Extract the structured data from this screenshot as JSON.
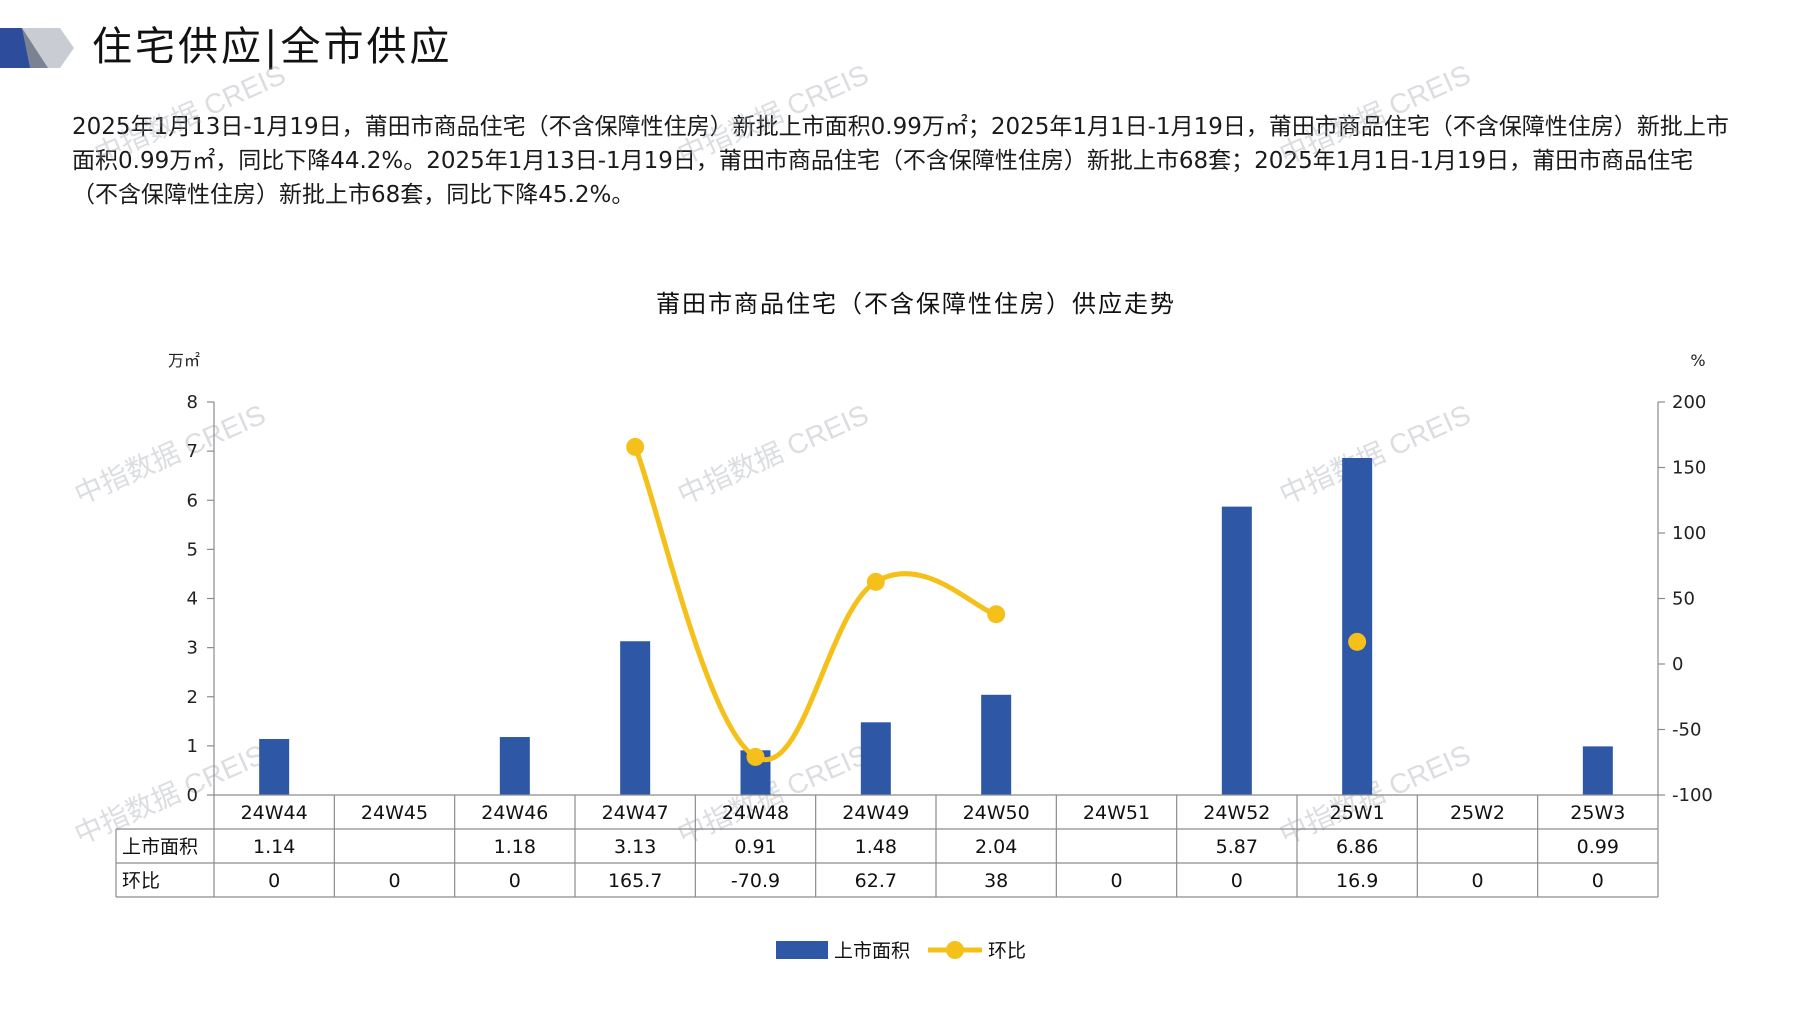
{
  "header": {
    "title": "住宅供应|全市供应"
  },
  "summary": "2025年1月13日-1月19日，莆田市商品住宅（不含保障性住房）新批上市面积0.99万㎡；2025年1月1日-1月19日，莆田市商品住宅（不含保障性住房）新批上市面积0.99万㎡，同比下降44.2%。2025年1月13日-1月19日，莆田市商品住宅（不含保障性住房）新批上市68套；2025年1月1日-1月19日，莆田市商品住宅（不含保障性住房）新批上市68套，同比下降45.2%。",
  "watermark": "中指数据 CREIS",
  "colors": {
    "bar": "#2E58A6",
    "line": "#F5C01A",
    "grid": "#8C8C8C",
    "logo_dark": "#2E4C9C",
    "logo_light": "#C9CCD3"
  },
  "chart_data": {
    "type": "bar+line",
    "title": "莆田市商品住宅（不含保障性住房）供应走势",
    "left_unit": "万㎡",
    "right_unit": "%",
    "categories": [
      "24W44",
      "24W45",
      "24W46",
      "24W47",
      "24W48",
      "24W49",
      "24W50",
      "24W51",
      "24W52",
      "25W1",
      "25W2",
      "25W3"
    ],
    "y_left": {
      "min": 0,
      "max": 8,
      "ticks": [
        "0",
        "1",
        "2",
        "3",
        "4",
        "5",
        "6",
        "7",
        "8"
      ]
    },
    "y_right": {
      "min": -100,
      "max": 200,
      "ticks": [
        "-100",
        "-50",
        "0",
        "50",
        "100",
        "150",
        "200"
      ]
    },
    "series": [
      {
        "name": "上市面积",
        "type": "bar",
        "values": [
          1.14,
          null,
          1.18,
          3.13,
          0.91,
          1.48,
          2.04,
          null,
          5.87,
          6.86,
          null,
          0.99
        ],
        "labels": [
          "1.14",
          "",
          "1.18",
          "3.13",
          "0.91",
          "1.48",
          "2.04",
          "",
          "5.87",
          "6.86",
          "",
          "0.99"
        ]
      },
      {
        "name": "环比",
        "type": "line",
        "values": [
          0,
          0,
          0,
          165.7,
          -70.9,
          62.7,
          38,
          0,
          0,
          16.9,
          0,
          0
        ],
        "labels": [
          "0",
          "0",
          "0",
          "165.7",
          "-70.9",
          "62.7",
          "38",
          "0",
          "0",
          "16.9",
          "0",
          "0"
        ],
        "drawn_segments": [
          [
            3,
            4,
            5,
            6
          ]
        ],
        "drawn_points": [
          9
        ]
      }
    ],
    "legend": {
      "position": "bottom",
      "items": [
        "上市面积",
        "环比"
      ]
    }
  }
}
